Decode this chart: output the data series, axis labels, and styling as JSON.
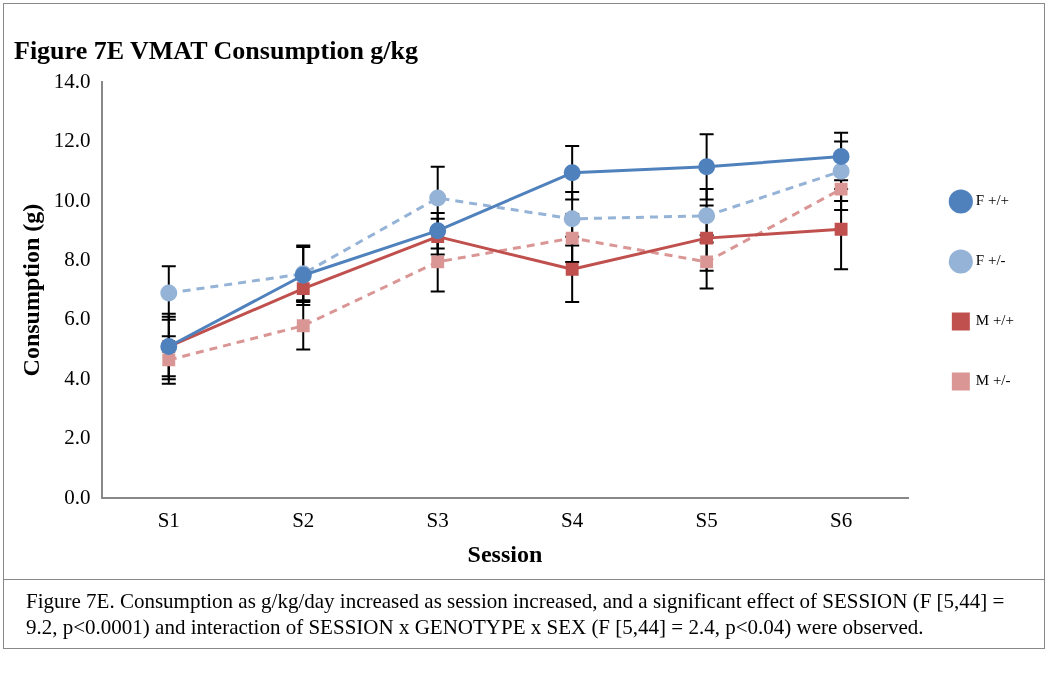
{
  "chart_data": {
    "type": "line",
    "title": "Figure 7E VMAT Consumption g/kg",
    "xlabel": "Session",
    "ylabel": "Consumption (g)",
    "categories": [
      "S1",
      "S2",
      "S3",
      "S4",
      "S5",
      "S6"
    ],
    "ylim": [
      0,
      14
    ],
    "yticks": [
      {
        "value": 0,
        "label": "0.0"
      },
      {
        "value": 2,
        "label": "2.0"
      },
      {
        "value": 4,
        "label": "4.0"
      },
      {
        "value": 6,
        "label": "6.0"
      },
      {
        "value": 8,
        "label": "8.0"
      },
      {
        "value": 10,
        "label": "10.0"
      },
      {
        "value": 12,
        "label": "12.0"
      },
      {
        "value": 14,
        "label": "14.0"
      }
    ],
    "grid": false,
    "legend": "right",
    "series": [
      {
        "name": "F +/+",
        "color": "#4f81bd",
        "marker": "circle",
        "line_style": "solid",
        "values": [
          5.1,
          7.5,
          9.0,
          10.95,
          11.15,
          11.5
        ],
        "errors": [
          1.1,
          1.0,
          0.6,
          0.9,
          1.1,
          0.8
        ]
      },
      {
        "name": "F +/-",
        "color": "#95b3d7",
        "marker": "circle",
        "line_style": "dashed",
        "values": [
          6.9,
          7.55,
          10.1,
          9.4,
          9.5,
          11.0
        ],
        "errors": [
          0.9,
          0.9,
          1.05,
          0.9,
          0.9,
          1.0
        ]
      },
      {
        "name": "M +/+",
        "color": "#c0504d",
        "marker": "square",
        "line_style": "solid",
        "values": [
          5.1,
          7.05,
          8.8,
          7.7,
          8.75,
          9.05
        ],
        "errors": [
          1.0,
          0.4,
          0.6,
          1.1,
          1.1,
          1.35
        ]
      },
      {
        "name": "M +/-",
        "color": "#d99694",
        "marker": "square",
        "line_style": "dashed",
        "values": [
          4.65,
          5.8,
          7.95,
          8.75,
          7.95,
          10.4
        ],
        "errors": [
          0.8,
          0.8,
          1.0,
          0.8,
          0.9,
          0.7
        ]
      }
    ],
    "annotations": [
      "Figure 7E.  Consumption as g/kg/day increased as session increased, and a significant effect of SESSION (F [5,44] = 9.2, p<0.0001) and interaction of SESSION x GENOTYPE x SEX (F [5,44] = 2.4, p<0.04) were observed."
    ]
  }
}
